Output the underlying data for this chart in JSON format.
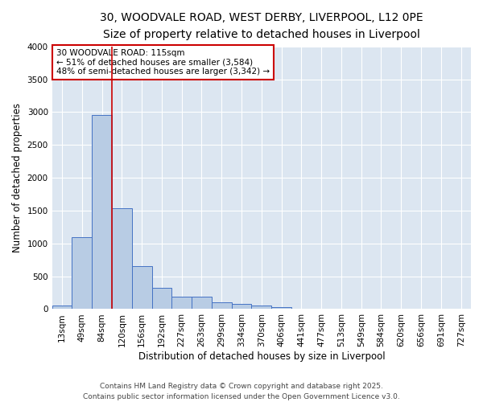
{
  "title_line1": "30, WOODVALE ROAD, WEST DERBY, LIVERPOOL, L12 0PE",
  "title_line2": "Size of property relative to detached houses in Liverpool",
  "xlabel": "Distribution of detached houses by size in Liverpool",
  "ylabel": "Number of detached properties",
  "categories": [
    "13sqm",
    "49sqm",
    "84sqm",
    "120sqm",
    "156sqm",
    "192sqm",
    "227sqm",
    "263sqm",
    "299sqm",
    "334sqm",
    "370sqm",
    "406sqm",
    "441sqm",
    "477sqm",
    "513sqm",
    "549sqm",
    "584sqm",
    "620sqm",
    "656sqm",
    "691sqm",
    "727sqm"
  ],
  "values": [
    55,
    1100,
    2960,
    1530,
    650,
    330,
    195,
    195,
    100,
    80,
    55,
    30,
    5,
    5,
    0,
    0,
    0,
    0,
    0,
    0,
    0
  ],
  "bar_color": "#b8cce4",
  "bar_edge_color": "#4472c4",
  "vline_color": "#cc0000",
  "vline_x_index": 2.5,
  "annotation_text": "30 WOODVALE ROAD: 115sqm\n← 51% of detached houses are smaller (3,584)\n48% of semi-detached houses are larger (3,342) →",
  "annotation_box_color": "#ffffff",
  "annotation_box_edge": "#cc0000",
  "ylim": [
    0,
    4000
  ],
  "yticks": [
    0,
    500,
    1000,
    1500,
    2000,
    2500,
    3000,
    3500,
    4000
  ],
  "background_color": "#dce6f1",
  "grid_color": "#ffffff",
  "footer_line1": "Contains HM Land Registry data © Crown copyright and database right 2025.",
  "footer_line2": "Contains public sector information licensed under the Open Government Licence v3.0.",
  "title_fontsize": 10,
  "subtitle_fontsize": 9,
  "axis_label_fontsize": 8.5,
  "tick_fontsize": 7.5,
  "annotation_fontsize": 7.5,
  "footer_fontsize": 6.5
}
